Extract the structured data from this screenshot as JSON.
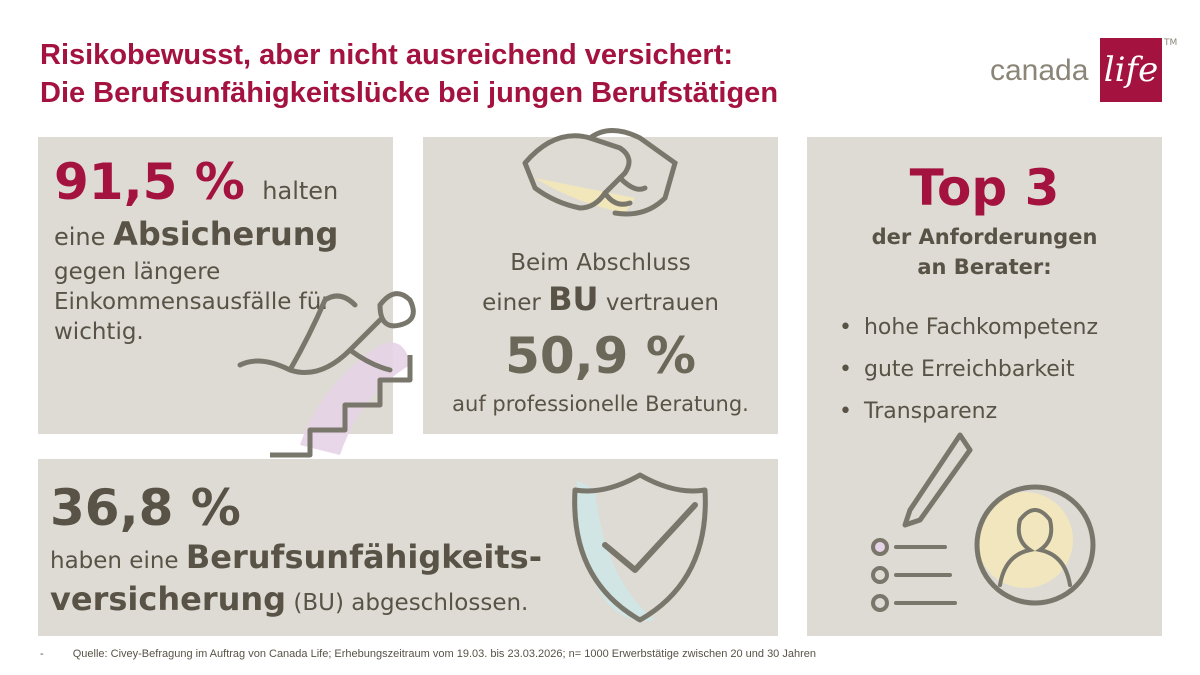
{
  "header": {
    "title_line1": "Risikobewusst, aber nicht ausreichend versichert:",
    "title_line2": "Die Berufsunfähigkeitslücke bei jungen Berufstätigen"
  },
  "logo": {
    "text": "canada",
    "box_text": "life",
    "tm": "TM"
  },
  "panel_absicherung": {
    "percent": "91,5 %",
    "lead": "halten",
    "line2_pre": "eine",
    "line2_bold": "Absicherung",
    "rest": "gegen längere Einkommensausfälle für wichtig.",
    "icon": "falling-person-stairs-icon"
  },
  "panel_beratung": {
    "line1": "Beim Abschluss",
    "line2_pre": "einer",
    "line2_bold": "BU",
    "line2_post": "vertrauen",
    "percent": "50,9 %",
    "line3": "auf professionelle Beratung.",
    "icon": "handshake-icon"
  },
  "panel_versicherung": {
    "percent": "36,8 %",
    "line2_pre": "haben eine",
    "line2_bold": "Berufsunfähigkeits-",
    "line3_bold": "versicherung",
    "line3_post": "(BU) abgeschlossen.",
    "icon": "shield-check-icon"
  },
  "panel_top3": {
    "title": "Top 3",
    "subtitle_line1": "der Anforderungen",
    "subtitle_line2": "an Berater:",
    "items": [
      "hohe Fachkompetenz",
      "gute Erreichbarkeit",
      "Transparenz"
    ],
    "icon": "checklist-advisor-icon"
  },
  "footer": {
    "dash": "-",
    "source": "Quelle: Civey-Befragung im Auftrag von Canada Life; Erhebungszeitraum vom 19.03. bis 23.03.2026; n= 1000 Erwerbstätige zwischen 20 und 30 Jahren"
  },
  "colors": {
    "accent": "#a4123f",
    "text": "#585346",
    "panel": "#dedbd4",
    "line": "#79766b"
  }
}
